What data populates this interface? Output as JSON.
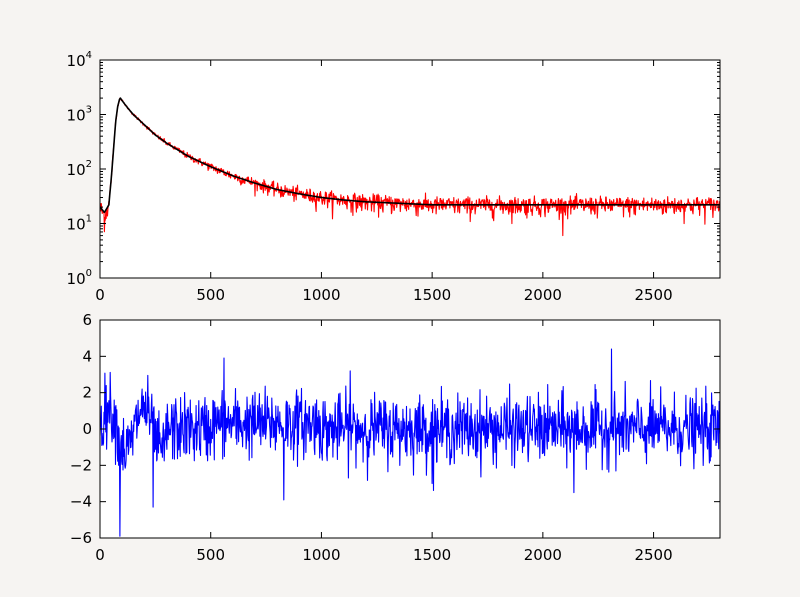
{
  "chart_data": [
    {
      "type": "line",
      "title": "",
      "xlabel": "",
      "ylabel": "",
      "xlim": [
        0,
        2800
      ],
      "ylim": [
        1,
        10000
      ],
      "yscale": "log",
      "grid": false,
      "x_ticks": [
        0,
        500,
        1000,
        1500,
        2000,
        2500
      ],
      "y_ticks": [
        {
          "base": "10",
          "exp": "0",
          "value": 1
        },
        {
          "base": "10",
          "exp": "1",
          "value": 10
        },
        {
          "base": "10",
          "exp": "2",
          "value": 100
        },
        {
          "base": "10",
          "exp": "3",
          "value": 1000
        },
        {
          "base": "10",
          "exp": "4",
          "value": 10000
        }
      ],
      "series": [
        {
          "color": "#ff0000",
          "style": "noisy-data",
          "x": [
            0,
            20,
            40,
            50,
            60,
            70,
            80,
            90,
            100,
            120,
            150,
            200,
            250,
            300,
            400,
            500,
            600,
            700,
            800,
            900,
            1000,
            1100,
            1200,
            1300,
            1400,
            1500,
            1750,
            2000,
            2250,
            2500,
            2800
          ],
          "y": [
            20,
            14,
            22,
            60,
            200,
            700,
            1400,
            2000,
            1800,
            1400,
            1000,
            650,
            420,
            300,
            170,
            110,
            75,
            55,
            42,
            35,
            30,
            27,
            25,
            24,
            23,
            22,
            22,
            22,
            22,
            22,
            22
          ]
        },
        {
          "color": "#000000",
          "style": "fit",
          "x": [
            0,
            20,
            40,
            50,
            60,
            70,
            80,
            90,
            100,
            120,
            150,
            200,
            250,
            300,
            400,
            500,
            600,
            700,
            800,
            900,
            1000,
            1100,
            1200,
            1300,
            1400,
            1500,
            1750,
            2000,
            2250,
            2500,
            2800
          ],
          "y": [
            20,
            16,
            22,
            60,
            200,
            700,
            1400,
            2050,
            1800,
            1400,
            1000,
            650,
            420,
            300,
            170,
            110,
            75,
            55,
            42,
            35,
            30,
            27,
            25,
            24,
            23,
            22,
            22,
            22,
            22,
            22,
            22
          ]
        }
      ]
    },
    {
      "type": "line",
      "title": "",
      "xlabel": "",
      "ylabel": "",
      "xlim": [
        0,
        2800
      ],
      "ylim": [
        -6,
        6
      ],
      "grid": false,
      "x_ticks": [
        0,
        500,
        1000,
        1500,
        2000,
        2500
      ],
      "y_ticks": [
        -6,
        -4,
        -2,
        0,
        2,
        4,
        6
      ],
      "series": [
        {
          "color": "#0000ff",
          "style": "residuals",
          "noise_sigma": 0.9,
          "x": [
            0,
            50,
            90,
            100,
            150,
            240,
            560,
            830,
            1130,
            1500,
            2140,
            2310,
            2800
          ],
          "y": [
            0.5,
            0.5,
            -5.9,
            2.0,
            1.0,
            -4.3,
            3.9,
            -3.9,
            3.2,
            -3.0,
            -3.5,
            4.4,
            0.5
          ]
        }
      ]
    }
  ]
}
